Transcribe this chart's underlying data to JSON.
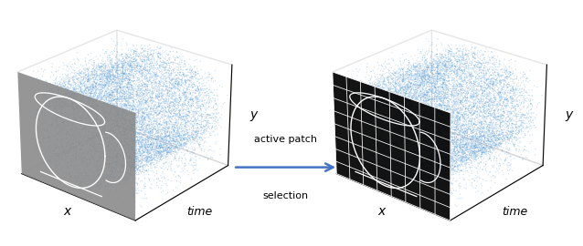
{
  "arrow_text_line1": "active patch",
  "arrow_text_line2": "selection",
  "arrow_color": "#4472C4",
  "label_x": "x",
  "label_y": "y",
  "label_time": "time",
  "bg_color": "#ffffff",
  "point_color": "#5b9bd5",
  "point_alpha": 0.35,
  "point_size": 0.8,
  "n_points": 12000,
  "grid_rows": 8,
  "grid_cols": 8,
  "elev": 25,
  "azim": -50
}
